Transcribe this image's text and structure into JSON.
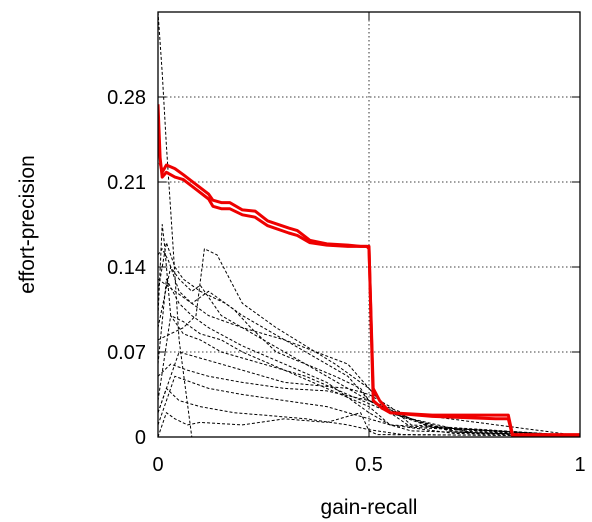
{
  "chart_data": {
    "type": "line",
    "xlabel": "gain-recall",
    "ylabel": "effort-precision",
    "xlim": [
      0,
      1
    ],
    "ylim": [
      0,
      0.35
    ],
    "grid": true,
    "x_ticks": [
      0,
      0.5,
      1
    ],
    "x_tick_labels": [
      "0",
      "0.5",
      "1"
    ],
    "y_ticks": [
      0,
      0.07,
      0.14,
      0.21,
      0.28
    ],
    "y_tick_labels": [
      "0",
      "0.07",
      "0.14",
      "0.21",
      "0.28"
    ],
    "series": [
      {
        "style": "solid",
        "color": "#ee0000",
        "x": [
          0.0,
          0.005,
          0.01,
          0.02,
          0.04,
          0.06,
          0.09,
          0.12,
          0.13,
          0.15,
          0.17,
          0.2,
          0.23,
          0.26,
          0.31,
          0.33,
          0.36,
          0.4,
          0.45,
          0.48,
          0.495,
          0.5,
          0.51,
          0.525,
          0.55,
          0.65,
          0.8,
          0.83,
          0.84,
          0.9,
          1.0
        ],
        "y": [
          0.274,
          0.23,
          0.214,
          0.218,
          0.214,
          0.212,
          0.204,
          0.196,
          0.19,
          0.188,
          0.188,
          0.183,
          0.181,
          0.174,
          0.168,
          0.166,
          0.16,
          0.158,
          0.157,
          0.157,
          0.157,
          0.155,
          0.04,
          0.03,
          0.02,
          0.017,
          0.015,
          0.015,
          0.001,
          0.001,
          0.001
        ]
      },
      {
        "style": "solid",
        "color": "#ee0000",
        "x": [
          0.005,
          0.01,
          0.02,
          0.04,
          0.06,
          0.09,
          0.12,
          0.13,
          0.15,
          0.17,
          0.2,
          0.23,
          0.26,
          0.31,
          0.33,
          0.36,
          0.4,
          0.45,
          0.48,
          0.495,
          0.5,
          0.51,
          0.53,
          0.55,
          0.65,
          0.8,
          0.83,
          0.84,
          0.9,
          1.0
        ],
        "y": [
          0.226,
          0.218,
          0.224,
          0.221,
          0.216,
          0.208,
          0.2,
          0.195,
          0.193,
          0.193,
          0.187,
          0.186,
          0.178,
          0.172,
          0.17,
          0.162,
          0.159,
          0.158,
          0.157,
          0.157,
          0.157,
          0.03,
          0.024,
          0.02,
          0.018,
          0.018,
          0.018,
          0.002,
          0.002,
          0.002
        ]
      },
      {
        "style": "dashed",
        "color": "#000000",
        "x": [
          0.0,
          0.01,
          0.02,
          0.035,
          0.05,
          0.08
        ],
        "y": [
          0.35,
          0.3,
          0.24,
          0.16,
          0.08,
          0.0
        ]
      },
      {
        "style": "dashed",
        "color": "#000000",
        "x": [
          0.0,
          0.01,
          0.025,
          0.05,
          0.08,
          0.12,
          0.2,
          0.3,
          0.45,
          0.5,
          0.55,
          0.7,
          1.0
        ],
        "y": [
          0.15,
          0.155,
          0.145,
          0.12,
          0.11,
          0.1,
          0.09,
          0.08,
          0.06,
          0.04,
          0.02,
          0.004,
          0.001
        ]
      },
      {
        "style": "dashed",
        "color": "#000000",
        "x": [
          0.0,
          0.02,
          0.04,
          0.06,
          0.1,
          0.16,
          0.2,
          0.25,
          0.35,
          0.45,
          0.5,
          0.55,
          0.7,
          1.0
        ],
        "y": [
          0.12,
          0.16,
          0.14,
          0.13,
          0.12,
          0.11,
          0.1,
          0.09,
          0.07,
          0.05,
          0.03,
          0.02,
          0.005,
          0.001
        ]
      },
      {
        "style": "dashed",
        "color": "#000000",
        "x": [
          0.0,
          0.03,
          0.05,
          0.08,
          0.1,
          0.15,
          0.2,
          0.3,
          0.4,
          0.5,
          0.6,
          0.75,
          1.0
        ],
        "y": [
          0.09,
          0.14,
          0.13,
          0.12,
          0.125,
          0.1,
          0.09,
          0.07,
          0.05,
          0.03,
          0.015,
          0.003,
          0.001
        ]
      },
      {
        "style": "dashed",
        "color": "#000000",
        "x": [
          0.0,
          0.02,
          0.05,
          0.08,
          0.12,
          0.2,
          0.3,
          0.4,
          0.5,
          0.55,
          0.7,
          1.0
        ],
        "y": [
          0.06,
          0.13,
          0.11,
          0.1,
          0.09,
          0.075,
          0.06,
          0.045,
          0.02,
          0.01,
          0.003,
          0.001
        ]
      },
      {
        "style": "dashed",
        "color": "#000000",
        "x": [
          0.0,
          0.03,
          0.06,
          0.1,
          0.15,
          0.25,
          0.35,
          0.45,
          0.55,
          0.65,
          1.0
        ],
        "y": [
          0.03,
          0.1,
          0.085,
          0.08,
          0.07,
          0.06,
          0.05,
          0.035,
          0.02,
          0.008,
          0.001
        ]
      },
      {
        "style": "dashed",
        "color": "#000000",
        "x": [
          0.0,
          0.05,
          0.1,
          0.15,
          0.2,
          0.3,
          0.45,
          0.5,
          0.55,
          0.6,
          1.0
        ],
        "y": [
          0.02,
          0.07,
          0.065,
          0.06,
          0.055,
          0.045,
          0.04,
          0.035,
          0.025,
          0.01,
          0.001
        ]
      },
      {
        "style": "dashed",
        "color": "#000000",
        "x": [
          0.0,
          0.04,
          0.08,
          0.12,
          0.2,
          0.3,
          0.4,
          0.5,
          0.6,
          1.0
        ],
        "y": [
          0.01,
          0.05,
          0.045,
          0.04,
          0.035,
          0.03,
          0.025,
          0.015,
          0.005,
          0.001
        ]
      },
      {
        "style": "dashed",
        "color": "#000000",
        "x": [
          0.0,
          0.02,
          0.05,
          0.1,
          0.18,
          0.25,
          0.35,
          0.45,
          0.5,
          0.58,
          1.0
        ],
        "y": [
          0.02,
          0.04,
          0.03,
          0.025,
          0.02,
          0.018,
          0.015,
          0.01,
          0.006,
          0.002,
          0.001
        ]
      },
      {
        "style": "dashed",
        "color": "#000000",
        "x": [
          0.0,
          0.06,
          0.09,
          0.11,
          0.14,
          0.2,
          0.28,
          0.35,
          0.42,
          0.5,
          0.55,
          0.6,
          1.0
        ],
        "y": [
          0.08,
          0.09,
          0.1,
          0.155,
          0.15,
          0.11,
          0.09,
          0.075,
          0.06,
          0.04,
          0.02,
          0.008,
          0.001
        ]
      },
      {
        "style": "dashed",
        "color": "#000000",
        "x": [
          0.0,
          0.03,
          0.07,
          0.12,
          0.2,
          0.3,
          0.4,
          0.5,
          0.53,
          0.65,
          1.0
        ],
        "y": [
          0.05,
          0.06,
          0.055,
          0.05,
          0.045,
          0.04,
          0.038,
          0.03,
          0.025,
          0.008,
          0.001
        ]
      },
      {
        "style": "dashed",
        "color": "#000000",
        "x": [
          0.0,
          0.02,
          0.04,
          0.07,
          0.1,
          0.2,
          0.3,
          0.4,
          0.48,
          0.5,
          0.52,
          1.0
        ],
        "y": [
          0.0,
          0.02,
          0.015,
          0.01,
          0.012,
          0.01,
          0.015,
          0.012,
          0.02,
          0.005,
          0.002,
          0.001
        ]
      },
      {
        "style": "dashed",
        "color": "#000000",
        "x": [
          0.0,
          0.01,
          0.015,
          0.03,
          0.06,
          0.1,
          0.15,
          0.2,
          0.3,
          0.4,
          0.5,
          0.55,
          1.0
        ],
        "y": [
          0.1,
          0.175,
          0.16,
          0.1,
          0.095,
          0.085,
          0.08,
          0.07,
          0.055,
          0.04,
          0.025,
          0.01,
          0.001
        ]
      },
      {
        "style": "dashed",
        "color": "#000000",
        "x": [
          0.0,
          0.08,
          0.12,
          0.18,
          0.22,
          0.28,
          0.35,
          0.42,
          0.48,
          0.5,
          0.58,
          1.0
        ],
        "y": [
          0.13,
          0.11,
          0.12,
          0.105,
          0.09,
          0.07,
          0.06,
          0.05,
          0.04,
          0.03,
          0.02,
          0.001
        ]
      }
    ]
  }
}
